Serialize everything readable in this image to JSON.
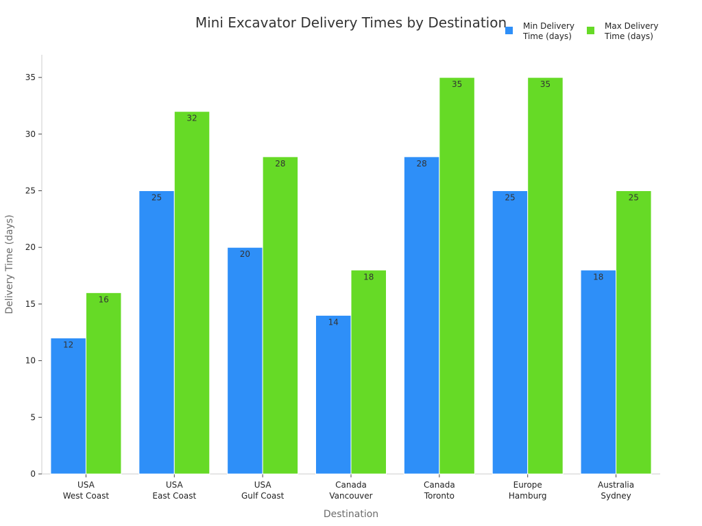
{
  "chart_data": {
    "type": "bar",
    "title": "Mini Excavator Delivery Times by Destination",
    "xlabel": "Destination",
    "ylabel": "Delivery Time (days)",
    "categories": [
      [
        "USA",
        "West Coast"
      ],
      [
        "USA",
        "East Coast"
      ],
      [
        "USA",
        "Gulf Coast"
      ],
      [
        "Canada",
        "Vancouver"
      ],
      [
        "Canada",
        "Toronto"
      ],
      [
        "Europe",
        "Hamburg"
      ],
      [
        "Australia",
        "Sydney"
      ]
    ],
    "series": [
      {
        "name": [
          "Min Delivery",
          "Time (days)"
        ],
        "values": [
          12,
          25,
          20,
          14,
          28,
          25,
          18
        ],
        "color": "#2e8ff8"
      },
      {
        "name": [
          "Max Delivery",
          "Time (days)"
        ],
        "values": [
          16,
          32,
          28,
          18,
          35,
          35,
          25
        ],
        "color": "#66da26"
      }
    ],
    "ylim": [
      0,
      37
    ],
    "yticks": [
      0,
      5,
      10,
      15,
      20,
      25,
      30,
      35
    ],
    "grid": false,
    "legend_position": "top-right"
  }
}
